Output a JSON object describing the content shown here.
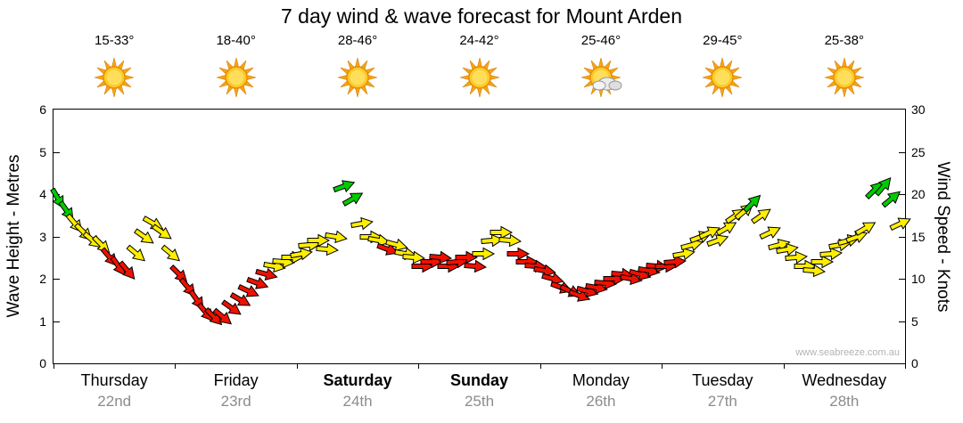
{
  "title": "7 day wind & wave forecast for Mount Arden",
  "watermark": "www.seabreeze.com.au",
  "days": [
    {
      "name": "Thursday",
      "date": "22nd",
      "temp": "15-33°",
      "icon": "sunny",
      "bold": false
    },
    {
      "name": "Friday",
      "date": "23rd",
      "temp": "18-40°",
      "icon": "sunny",
      "bold": false
    },
    {
      "name": "Saturday",
      "date": "24th",
      "temp": "28-46°",
      "icon": "sunny",
      "bold": true
    },
    {
      "name": "Sunday",
      "date": "25th",
      "temp": "24-42°",
      "icon": "sunny",
      "bold": true
    },
    {
      "name": "Monday",
      "date": "26th",
      "temp": "25-46°",
      "icon": "partly-cloudy",
      "bold": false
    },
    {
      "name": "Tuesday",
      "date": "27th",
      "temp": "29-45°",
      "icon": "sunny",
      "bold": false
    },
    {
      "name": "Wednesday",
      "date": "28th",
      "temp": "25-38°",
      "icon": "sunny",
      "bold": false
    }
  ],
  "chart_data": {
    "type": "wind-arrow-series",
    "title": "7 day wind & wave forecast for Mount Arden",
    "categories": [
      "Thursday 22nd",
      "Friday 23rd",
      "Saturday 24th",
      "Sunday 25th",
      "Monday 26th",
      "Tuesday 27th",
      "Wednesday 28th"
    ],
    "ylabel_left": "Wave Height - Metres",
    "ylabel_right": "Wind Speed - Knots",
    "ylim_left": [
      0,
      6
    ],
    "ylim_right": [
      0,
      30
    ],
    "yticks_left": [
      0,
      1,
      2,
      3,
      4,
      5,
      6
    ],
    "yticks_right": [
      0,
      5,
      10,
      15,
      20,
      25,
      30
    ],
    "grid": false,
    "colors": {
      "g": "#00CC00",
      "y": "#FFEE00",
      "r": "#EE1100"
    },
    "point_format": [
      "x_days",
      "wind_speed_knots",
      "color",
      "direction_deg"
    ],
    "points": [
      [
        0.036,
        19.5,
        "g",
        60
      ],
      [
        0.107,
        18,
        "g",
        55
      ],
      [
        0.179,
        16.5,
        "y",
        50
      ],
      [
        0.25,
        15.5,
        "y",
        45
      ],
      [
        0.321,
        14.5,
        "y",
        40
      ],
      [
        0.393,
        14,
        "y",
        45
      ],
      [
        0.464,
        12.5,
        "r",
        50
      ],
      [
        0.536,
        11.5,
        "r",
        55
      ],
      [
        0.607,
        11,
        "r",
        50
      ],
      [
        0.679,
        13,
        "y",
        40
      ],
      [
        0.75,
        15,
        "y",
        35
      ],
      [
        0.821,
        16.5,
        "y",
        30
      ],
      [
        0.893,
        15.5,
        "y",
        35
      ],
      [
        0.964,
        13,
        "y",
        40
      ],
      [
        1.036,
        10.5,
        "r",
        45
      ],
      [
        1.107,
        9,
        "r",
        50
      ],
      [
        1.179,
        7.5,
        "r",
        55
      ],
      [
        1.25,
        6,
        "r",
        50
      ],
      [
        1.321,
        5.5,
        "r",
        45
      ],
      [
        1.393,
        5.5,
        "r",
        40
      ],
      [
        1.464,
        6.5,
        "r",
        35
      ],
      [
        1.536,
        7.5,
        "r",
        30
      ],
      [
        1.607,
        8.5,
        "r",
        25
      ],
      [
        1.679,
        9.5,
        "r",
        20
      ],
      [
        1.75,
        10.5,
        "r",
        15
      ],
      [
        1.821,
        11.5,
        "y",
        10
      ],
      [
        1.893,
        12,
        "y",
        5
      ],
      [
        1.964,
        12.5,
        "y",
        0
      ],
      [
        2.036,
        13,
        "y",
        -10
      ],
      [
        2.107,
        14,
        "y",
        -5
      ],
      [
        2.179,
        14.5,
        "y",
        0
      ],
      [
        2.25,
        13.5,
        "y",
        5
      ],
      [
        2.321,
        15,
        "y",
        10
      ],
      [
        2.393,
        21,
        "g",
        -20
      ],
      [
        2.464,
        19.5,
        "g",
        -30
      ],
      [
        2.536,
        16.5,
        "y",
        -10
      ],
      [
        2.607,
        15,
        "y",
        0
      ],
      [
        2.679,
        14.5,
        "y",
        10
      ],
      [
        2.75,
        13.5,
        "r",
        20
      ],
      [
        2.821,
        14,
        "y",
        15
      ],
      [
        2.893,
        13,
        "y",
        10
      ],
      [
        2.964,
        12.5,
        "y",
        5
      ],
      [
        3.036,
        11.5,
        "r",
        0
      ],
      [
        3.107,
        12,
        "r",
        0
      ],
      [
        3.179,
        12.5,
        "r",
        5
      ],
      [
        3.25,
        11.5,
        "r",
        0
      ],
      [
        3.321,
        12,
        "r",
        -5
      ],
      [
        3.393,
        12.5,
        "r",
        0
      ],
      [
        3.464,
        11.5,
        "r",
        5
      ],
      [
        3.536,
        13,
        "y",
        0
      ],
      [
        3.607,
        14.5,
        "y",
        -5
      ],
      [
        3.679,
        15.5,
        "y",
        0
      ],
      [
        3.75,
        14.5,
        "y",
        5
      ],
      [
        3.821,
        13,
        "r",
        0
      ],
      [
        3.893,
        12,
        "r",
        0
      ],
      [
        3.964,
        11.5,
        "r",
        5
      ],
      [
        4.036,
        11,
        "r",
        10
      ],
      [
        4.107,
        10,
        "r",
        15
      ],
      [
        4.179,
        9,
        "r",
        20
      ],
      [
        4.25,
        8.5,
        "r",
        25
      ],
      [
        4.321,
        8,
        "r",
        20
      ],
      [
        4.393,
        8.5,
        "r",
        15
      ],
      [
        4.464,
        9,
        "r",
        10
      ],
      [
        4.536,
        9.5,
        "r",
        5
      ],
      [
        4.607,
        10,
        "r",
        0
      ],
      [
        4.679,
        10.5,
        "r",
        5
      ],
      [
        4.75,
        10,
        "r",
        10
      ],
      [
        4.821,
        10.5,
        "r",
        15
      ],
      [
        4.893,
        11,
        "r",
        10
      ],
      [
        4.964,
        11.5,
        "r",
        5
      ],
      [
        5.036,
        11.5,
        "r",
        0
      ],
      [
        5.107,
        12,
        "r",
        -5
      ],
      [
        5.179,
        13,
        "y",
        -10
      ],
      [
        5.25,
        14,
        "y",
        -15
      ],
      [
        5.321,
        15,
        "y",
        -20
      ],
      [
        5.393,
        15.5,
        "y",
        -25
      ],
      [
        5.464,
        14.5,
        "y",
        -20
      ],
      [
        5.536,
        16,
        "y",
        -30
      ],
      [
        5.607,
        17.5,
        "y",
        -35
      ],
      [
        5.679,
        18,
        "y",
        -40
      ],
      [
        5.75,
        19,
        "g",
        -45
      ],
      [
        5.821,
        17.5,
        "y",
        -35
      ],
      [
        5.893,
        15.5,
        "y",
        -25
      ],
      [
        5.964,
        14,
        "y",
        -15
      ],
      [
        6.036,
        13.5,
        "y",
        -10
      ],
      [
        6.107,
        12.5,
        "y",
        -5
      ],
      [
        6.179,
        11.5,
        "y",
        0
      ],
      [
        6.25,
        11,
        "y",
        5
      ],
      [
        6.321,
        12,
        "y",
        0
      ],
      [
        6.393,
        13,
        "y",
        -5
      ],
      [
        6.464,
        14,
        "y",
        -10
      ],
      [
        6.536,
        14.5,
        "y",
        -15
      ],
      [
        6.607,
        15,
        "y",
        -20
      ],
      [
        6.679,
        16,
        "y",
        -30
      ],
      [
        6.75,
        20.5,
        "g",
        -45
      ],
      [
        6.821,
        21,
        "g",
        -50
      ],
      [
        6.893,
        19.5,
        "g",
        -40
      ],
      [
        6.964,
        16.5,
        "y",
        -25
      ]
    ]
  }
}
